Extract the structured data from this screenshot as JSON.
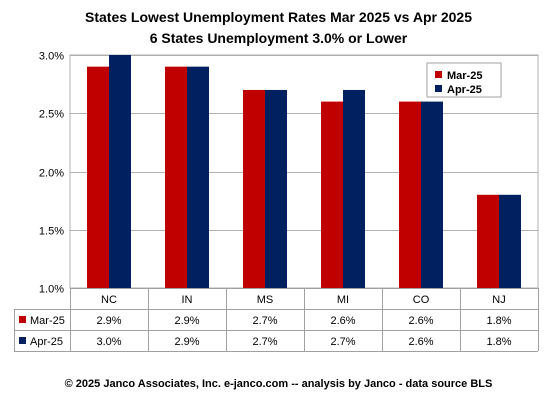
{
  "chart_data": {
    "type": "bar",
    "title": "States Lowest Unemployment Rates Mar 2025 vs Apr 2025",
    "subtitle": "6 States  Unemployment 3.0% or Lower",
    "categories": [
      "NC",
      "IN",
      "MS",
      "MI",
      "CO",
      "NJ"
    ],
    "series": [
      {
        "name": "Mar-25",
        "values": [
          2.9,
          2.9,
          2.7,
          2.6,
          2.6,
          1.8
        ],
        "labels": [
          "2.9%",
          "2.9%",
          "2.7%",
          "2.6%",
          "2.6%",
          "1.8%"
        ],
        "color": "#c00000"
      },
      {
        "name": "Apr-25",
        "values": [
          3.0,
          2.9,
          2.7,
          2.7,
          2.6,
          1.8
        ],
        "labels": [
          "3.0%",
          "2.9%",
          "2.7%",
          "2.7%",
          "2.6%",
          "1.8%"
        ],
        "color": "#002060"
      }
    ],
    "ylim": [
      1.0,
      3.0
    ],
    "yticks": [
      1.0,
      1.5,
      2.0,
      2.5,
      3.0
    ],
    "ytick_labels": [
      "1.0%",
      "1.5%",
      "2.0%",
      "2.5%",
      "3.0%"
    ],
    "grid": true,
    "legend": "top-right",
    "data_table": true
  },
  "footer": "© 2025 Janco Associates, Inc. e-janco.com -- analysis by Janco - data source BLS"
}
